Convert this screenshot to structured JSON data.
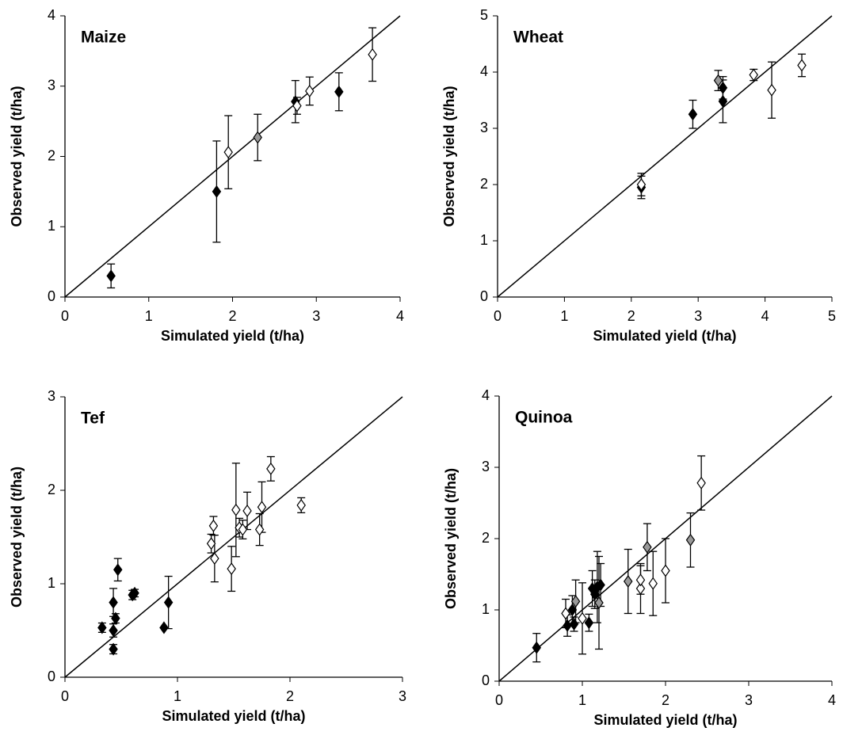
{
  "chart_data": [
    {
      "type": "scatter",
      "title": "Maize",
      "x_label": "Simulated yield (t/ha)",
      "y_label": "Observed yield (t/ha)",
      "xlim": [
        0,
        4
      ],
      "ylim": [
        0,
        4
      ],
      "xticks": [
        0,
        1,
        2,
        3,
        4
      ],
      "yticks": [
        0,
        1,
        2,
        3,
        4
      ],
      "series": [
        {
          "color": "#000000",
          "x": [
            0.55,
            1.81,
            2.75,
            3.27
          ],
          "values": [
            0.3,
            1.5,
            2.78,
            2.92
          ],
          "errors": [
            0.17,
            0.72,
            0.3,
            0.27
          ]
        },
        {
          "color": "#999999",
          "x": [
            2.3
          ],
          "values": [
            2.27
          ],
          "errors": [
            0.33
          ]
        },
        {
          "color": "#ffffff",
          "x": [
            1.95,
            2.77,
            2.92,
            3.67
          ],
          "values": [
            2.06,
            2.72,
            2.93,
            3.45
          ],
          "errors": [
            0.52,
            0.12,
            0.2,
            0.38
          ]
        }
      ]
    },
    {
      "type": "scatter",
      "title": "Wheat",
      "x_label": "Simulated yield (t/ha)",
      "y_label": "Observed yield (t/ha)",
      "xlim": [
        0,
        5
      ],
      "ylim": [
        0,
        5
      ],
      "xticks": [
        0,
        1,
        2,
        3,
        4,
        5
      ],
      "yticks": [
        0,
        1,
        2,
        3,
        4,
        5
      ],
      "series": [
        {
          "color": "#000000",
          "x": [
            2.15,
            2.92,
            3.37,
            3.37
          ],
          "values": [
            1.95,
            3.25,
            3.72,
            3.48
          ],
          "errors": [
            0.2,
            0.25,
            0.2,
            0.38
          ]
        },
        {
          "color": "#999999",
          "x": [
            3.3
          ],
          "values": [
            3.85
          ],
          "errors": [
            0.18
          ]
        },
        {
          "color": "#ffffff",
          "x": [
            2.15,
            3.83,
            4.1,
            4.55
          ],
          "values": [
            2.0,
            3.95,
            3.68,
            4.12
          ],
          "errors": [
            0.2,
            0.1,
            0.5,
            0.2
          ]
        }
      ]
    },
    {
      "type": "scatter",
      "title": "Tef",
      "x_label": "Simulated yield (t/ha)",
      "y_label": "Observed yield (t/ha)",
      "xlim": [
        0,
        3
      ],
      "ylim": [
        0,
        3
      ],
      "xticks": [
        0,
        1,
        2,
        3
      ],
      "yticks": [
        0,
        1,
        2,
        3
      ],
      "series": [
        {
          "color": "#000000",
          "x": [
            0.33,
            0.43,
            0.43,
            0.43,
            0.47,
            0.45,
            0.6,
            0.62,
            0.92,
            0.88
          ],
          "values": [
            0.53,
            0.8,
            0.5,
            0.3,
            1.15,
            0.63,
            0.88,
            0.9,
            0.8,
            0.53
          ],
          "errors": [
            0.05,
            0.15,
            0.07,
            0.05,
            0.12,
            0.05,
            0.05,
            0.04,
            0.28,
            0.0
          ]
        },
        {
          "color": "#ffffff",
          "x": [
            1.3,
            1.32,
            1.33,
            1.48,
            1.52,
            1.55,
            1.58,
            1.62,
            1.73,
            1.75,
            1.83,
            2.1
          ],
          "values": [
            1.43,
            1.62,
            1.27,
            1.16,
            1.79,
            1.6,
            1.58,
            1.78,
            1.58,
            1.82,
            2.23,
            1.84
          ],
          "errors": [
            0.1,
            0.1,
            0.25,
            0.24,
            0.5,
            0.1,
            0.1,
            0.2,
            0.17,
            0.27,
            0.13,
            0.08
          ]
        }
      ]
    },
    {
      "type": "scatter",
      "title": "Quinoa",
      "x_label": "Simulated yield (t/ha)",
      "y_label": "Observed yield (t/ha)",
      "xlim": [
        0,
        4
      ],
      "ylim": [
        0,
        4
      ],
      "xticks": [
        0,
        1,
        2,
        3,
        4
      ],
      "yticks": [
        0,
        1,
        2,
        3,
        4
      ],
      "series": [
        {
          "color": "#000000",
          "x": [
            0.45,
            0.82,
            0.88,
            0.9,
            1.08,
            1.12,
            1.15,
            1.18,
            1.22
          ],
          "values": [
            0.47,
            0.78,
            1.0,
            0.8,
            0.82,
            1.3,
            1.22,
            1.32,
            1.35
          ],
          "errors": [
            0.2,
            0.15,
            0.2,
            0.1,
            0.12,
            0.25,
            0.2,
            0.5,
            0.3
          ]
        },
        {
          "color": "#999999",
          "x": [
            0.92,
            1.2,
            1.55,
            1.78,
            2.3
          ],
          "values": [
            1.12,
            1.1,
            1.4,
            1.88,
            1.98
          ],
          "errors": [
            0.3,
            0.65,
            0.45,
            0.33,
            0.38
          ]
        },
        {
          "color": "#ffffff",
          "x": [
            0.8,
            1.0,
            1.7,
            1.7,
            1.85,
            2.0,
            2.43
          ],
          "values": [
            0.95,
            0.88,
            1.3,
            1.42,
            1.37,
            1.55,
            2.78
          ],
          "errors": [
            0.2,
            0.5,
            0.35,
            0.2,
            0.45,
            0.45,
            0.38
          ]
        }
      ]
    }
  ]
}
